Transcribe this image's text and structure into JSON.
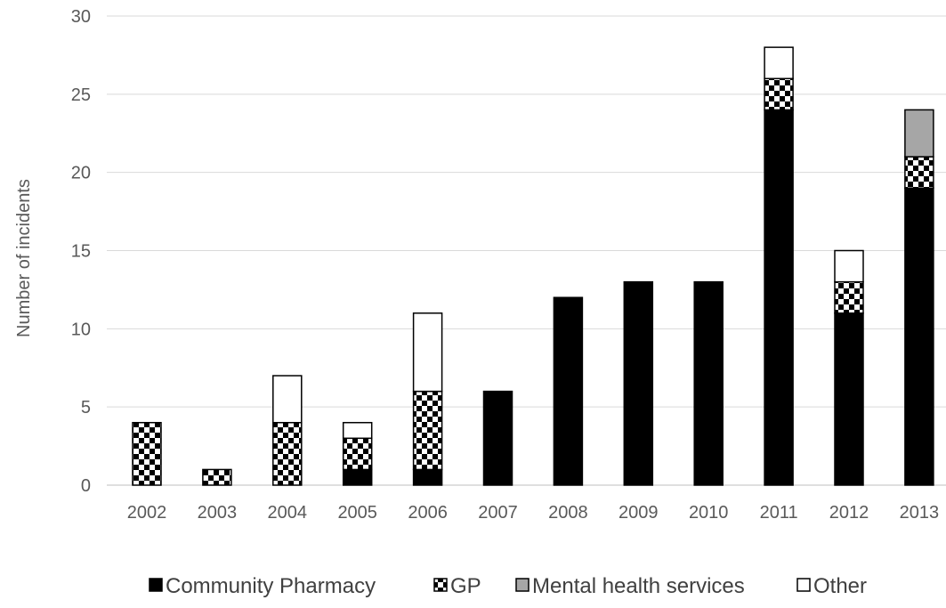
{
  "chart_data": {
    "type": "bar",
    "stacked": true,
    "title": "",
    "xlabel": "",
    "ylabel": "Number of incidents",
    "ylim": [
      0,
      30
    ],
    "yticks": [
      0,
      5,
      10,
      15,
      20,
      25,
      30
    ],
    "grid": true,
    "legend_position": "bottom",
    "categories": [
      "2002",
      "2003",
      "2004",
      "2005",
      "2006",
      "2007",
      "2008",
      "2009",
      "2010",
      "2011",
      "2012",
      "2013"
    ],
    "series": [
      {
        "name": "Community  Pharmacy",
        "pattern": "solid-black",
        "values": [
          0,
          0,
          0,
          1,
          1,
          6,
          12,
          13,
          13,
          24,
          11,
          19
        ]
      },
      {
        "name": "GP",
        "pattern": "checker-black-white",
        "values": [
          4,
          1,
          4,
          2,
          5,
          0,
          0,
          0,
          0,
          2,
          2,
          2
        ]
      },
      {
        "name": "Mental health services",
        "pattern": "solid-grey",
        "values": [
          0,
          0,
          0,
          0,
          0,
          0,
          0,
          0,
          0,
          0,
          0,
          3
        ]
      },
      {
        "name": "Other",
        "pattern": "white-outlined",
        "values": [
          0,
          0,
          3,
          1,
          5,
          0,
          0,
          0,
          0,
          2,
          2,
          0
        ]
      }
    ],
    "colors": {
      "community": "#000000",
      "gp_dark": "#000000",
      "gp_light": "#ffffff",
      "mental": "#a6a6a6",
      "other": "#ffffff",
      "outline": "#000000",
      "grid": "#d9d9d9",
      "text": "#595959"
    }
  }
}
